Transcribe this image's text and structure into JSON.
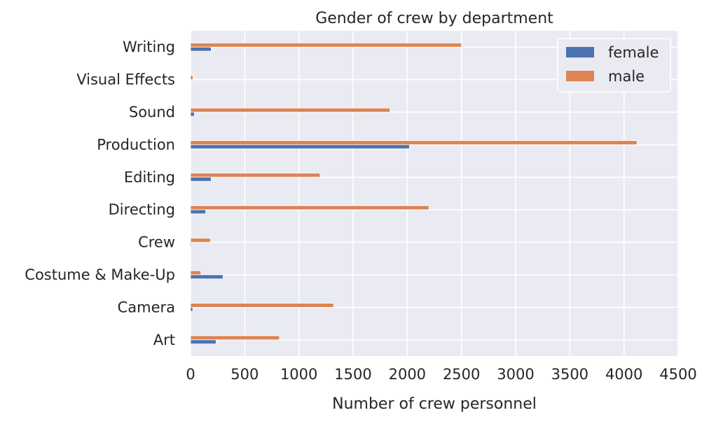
{
  "chart_data": {
    "type": "bar",
    "orientation": "horizontal",
    "title": "Gender of crew by department",
    "xlabel": "Number of crew personnel",
    "ylabel": "",
    "xlim": [
      0,
      4500
    ],
    "xticks": [
      0,
      500,
      1000,
      1500,
      2000,
      2500,
      3000,
      3500,
      4000,
      4500
    ],
    "categories": [
      "Art",
      "Camera",
      "Costume & Make-Up",
      "Crew",
      "Directing",
      "Editing",
      "Production",
      "Sound",
      "Visual Effects",
      "Writing"
    ],
    "series": [
      {
        "name": "female",
        "color": "#4c72b0",
        "values": [
          235,
          20,
          300,
          8,
          140,
          190,
          2020,
          35,
          3,
          190
        ]
      },
      {
        "name": "male",
        "color": "#dd8452",
        "values": [
          820,
          1320,
          95,
          185,
          2200,
          1195,
          4120,
          1840,
          22,
          2500
        ]
      }
    ],
    "grid": true,
    "legend_position": "top-right",
    "background": "#eaeaf2"
  }
}
